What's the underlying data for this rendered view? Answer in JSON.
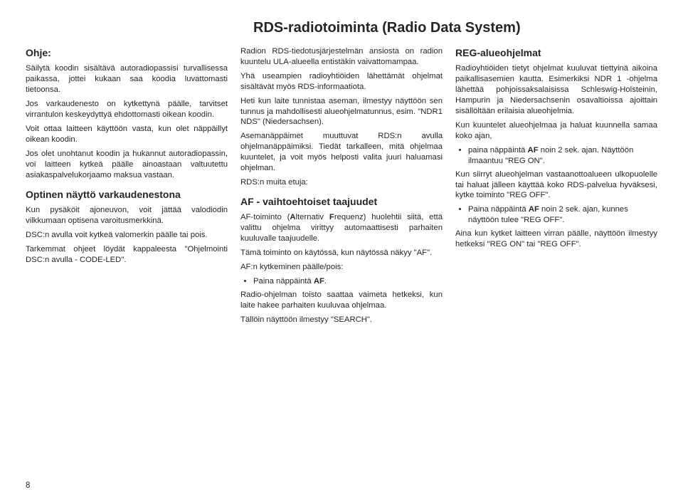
{
  "mainTitle": "RDS-radiotoiminta (Radio Data System)",
  "pageNumber": "8",
  "col1": {
    "h1": "Ohje:",
    "p1": "Säilytä koodin sisältävä autoradiopassisi turvallisessa paikassa, jottei kukaan saa koodia luvattomasti tietoonsa.",
    "p2": "Jos varkaudenesto on kytkettynä päälle, tarvitset virrantulon keskeydyttyä ehdottomasti oikean koodin.",
    "p3": "Voit ottaa laitteen käyttöön vasta, kun olet näppäillyt oikean koodin.",
    "p4": "Jos olet unohtanut koodin ja hukannut autoradiopassin, voi laitteen kytkeä päälle ainoastaan valtuutettu asiakaspalvelukorjaamo maksua vastaan.",
    "h2": "Optinen näyttö varkaudenestona",
    "p5": "Kun pysäköit ajoneuvon, voit jättää valodiodin vilkkumaan optisena varoitusmerkkinä.",
    "p6": "DSC:n avulla voit kytkeä valomerkin päälle tai pois.",
    "p7": "Tarkemmat ohjeet löydät kappaleesta \"Ohjelmointi DSC:n avulla - CODE-LED\"."
  },
  "col2": {
    "p1": "Radion RDS-tiedotusjärjestelmän ansiosta on radion kuuntelu ULA-alueella entistäkin vaivattomampaa.",
    "p2": "Yhä useampien radioyhtiöiden lähettämät ohjelmat sisältävät myös RDS-informaatiota.",
    "p3": "Heti kun laite tunnistaa aseman, ilmestyy näyttöön sen tunnus ja mahdollisesti alueohjelmatunnus, esim. \"NDR1 NDS\" (Niedersachsen).",
    "p4": "Asemanäppäimet muuttuvat RDS:n avulla ohjelmanäppäimiksi. Tiedät tarkalleen, mitä ohjelmaa kuuntelet, ja voit myös helposti valita juuri haluamasi ohjelman.",
    "p5": "RDS:n muita etuja:",
    "h1": "AF - vaihtoehtoiset taajuudet",
    "p6a": "AF-toiminto (",
    "p6b": "A",
    "p6c": "lternativ ",
    "p6d": "F",
    "p6e": "requenz) huolehtii siitä, että valittu ohjelma virittyy automaattisesti parhaiten kuuluvalle taajuudelle.",
    "p7": "Tämä toiminto on käytössä, kun näytössä näkyy \"AF\".",
    "p8": "AF:n kytkeminen päälle/pois:",
    "li1a": "Paina näppäintä ",
    "li1b": "AF",
    "li1c": ".",
    "p9": "Radio-ohjelman toisto saattaa vaimeta hetkeksi, kun laite hakee parhaiten kuuluvaa ohjelmaa.",
    "p10": "Tällöin näyttöön ilmestyy \"SEARCH\"."
  },
  "col3": {
    "h1": "REG-alueohjelmat",
    "p1": "Radioyhtiöiden tietyt ohjelmat kuuluvat tiettyinä aikoina paikallisasemien kautta. Esimerkiksi NDR 1 -ohjelma lähettää pohjoissaksalaisissa Schleswig-Holsteinin, Hampurin ja Niedersachsenin osavaltioissa ajoittain sisällöltään erilaisia alueohjelmia.",
    "p2": "Kun kuuntelet alueohjelmaa ja haluat kuunnella samaa koko ajan,",
    "li1a": "paina näppäintä ",
    "li1b": "AF",
    "li1c": " noin 2 sek. ajan. Näyttöön ilmaantuu \"REG ON\".",
    "p3": "Kun siirryt alueohjelman vastaanottoalueen ulkopuolelle tai haluat jälleen käyttää koko RDS-palvelua hyväksesi, kytke toiminto \"REG OFF\".",
    "li2a": "Paina näppäintä ",
    "li2b": "AF",
    "li2c": " noin 2 sek. ajan, kunnes näyttöön tulee \"REG OFF\".",
    "p4": "Aina kun kytket laitteen virran päälle, näyttöön ilmestyy hetkeksi \"REG ON\" tai \"REG OFF\"."
  }
}
